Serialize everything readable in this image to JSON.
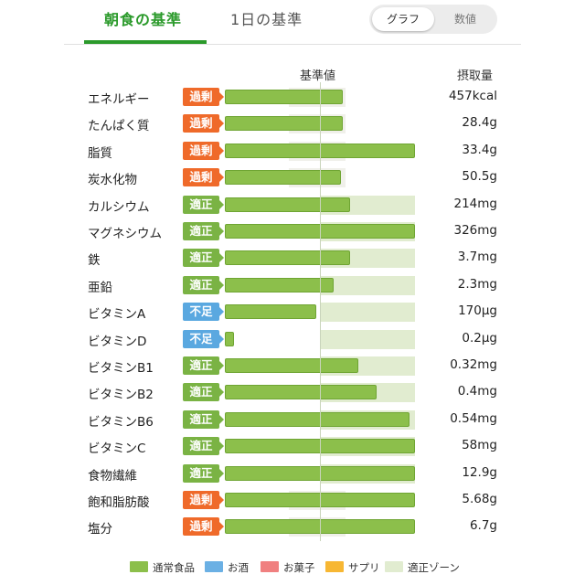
{
  "tabs": {
    "active_label": "朝食の基準",
    "inactive_label": "1日の基準"
  },
  "toggle": {
    "graph_label": "グラフ",
    "numeric_label": "数値"
  },
  "headers": {
    "base": "基準値",
    "intake": "摂取量"
  },
  "nutrients": [
    {
      "name": "エネルギー",
      "status": "過剰",
      "status_type": "over",
      "value": "457kcal",
      "level": 0.62
    },
    {
      "name": "たんぱく質",
      "status": "過剰",
      "status_type": "over",
      "value": "28.4g",
      "level": 0.62
    },
    {
      "name": "脂質",
      "status": "過剰",
      "status_type": "over",
      "value": "33.4g",
      "level": 1.0
    },
    {
      "name": "炭水化物",
      "status": "過剰",
      "status_type": "over",
      "value": "50.5g",
      "level": 0.61
    },
    {
      "name": "カルシウム",
      "status": "適正",
      "status_type": "ok",
      "value": "214mg",
      "level": 0.66
    },
    {
      "name": "マグネシウム",
      "status": "適正",
      "status_type": "ok",
      "value": "326mg",
      "level": 1.0
    },
    {
      "name": "鉄",
      "status": "適正",
      "status_type": "ok",
      "value": "3.7mg",
      "level": 0.66
    },
    {
      "name": "亜鉛",
      "status": "適正",
      "status_type": "ok",
      "value": "2.3mg",
      "level": 0.57
    },
    {
      "name": "ビタミンA",
      "status": "不足",
      "status_type": "low",
      "value": "170μg",
      "level": 0.48
    },
    {
      "name": "ビタミンD",
      "status": "不足",
      "status_type": "low",
      "value": "0.2μg",
      "level": 0.04
    },
    {
      "name": "ビタミンB1",
      "status": "適正",
      "status_type": "ok",
      "value": "0.32mg",
      "level": 0.7
    },
    {
      "name": "ビタミンB2",
      "status": "適正",
      "status_type": "ok",
      "value": "0.4mg",
      "level": 0.8
    },
    {
      "name": "ビタミンB6",
      "status": "適正",
      "status_type": "ok",
      "value": "0.54mg",
      "level": 0.97
    },
    {
      "name": "ビタミンC",
      "status": "適正",
      "status_type": "ok",
      "value": "58mg",
      "level": 1.0
    },
    {
      "name": "食物繊維",
      "status": "適正",
      "status_type": "ok",
      "value": "12.9g",
      "level": 1.0
    },
    {
      "name": "飽和脂肪酸",
      "status": "過剰",
      "status_type": "over",
      "value": "5.68g",
      "level": 1.0
    },
    {
      "name": "塩分",
      "status": "過剰",
      "status_type": "over",
      "value": "6.7g",
      "level": 1.0
    }
  ],
  "legend": [
    {
      "label": "通常食品",
      "color": "#8cbf4b"
    },
    {
      "label": "お酒",
      "color": "#6bb0e4"
    },
    {
      "label": "お菓子",
      "color": "#f08080"
    },
    {
      "label": "サプリ",
      "color": "#f7b733"
    },
    {
      "label": "適正ゾーン",
      "color": "#e1ecd0"
    }
  ],
  "colors": {
    "accent": "#2b9a2b",
    "over": "#ef6a2a",
    "ok": "#7ab344",
    "low": "#5aa8e0",
    "bar": "#8cbf4b",
    "zone": "#e1ecd0"
  }
}
